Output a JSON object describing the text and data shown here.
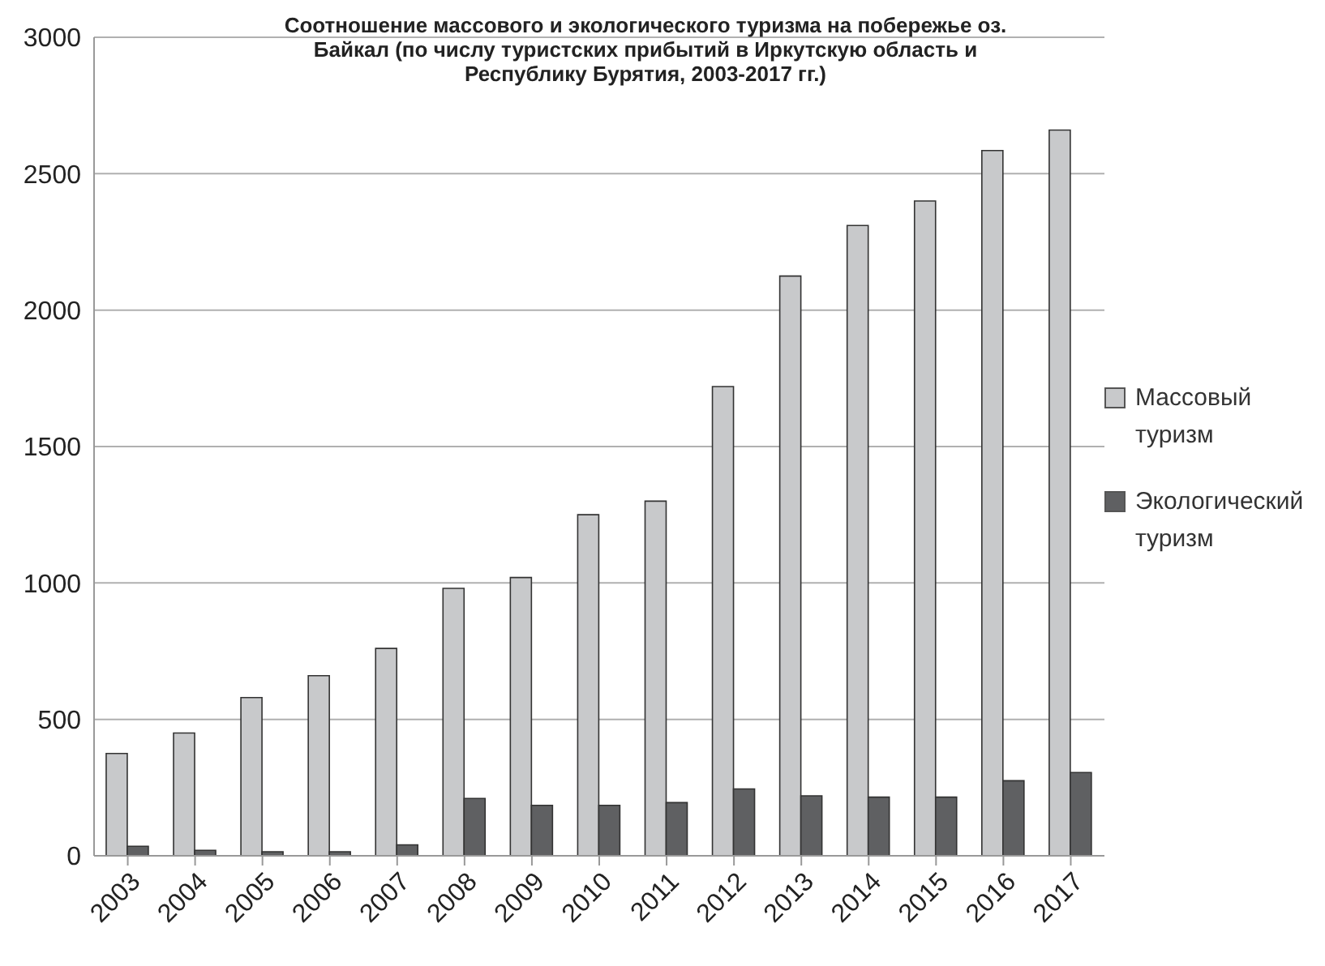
{
  "chart_data": {
    "type": "bar",
    "title": "Соотношение массового и экологического туризма на побережье оз. Байкал (по числу туристских прибытий в Иркутскую область и Республику Бурятия, 2003-2017 гг.)",
    "categories": [
      "2003",
      "2004",
      "2005",
      "2006",
      "2007",
      "2008",
      "2009",
      "2010",
      "2011",
      "2012",
      "2013",
      "2014",
      "2015",
      "2016",
      "2017"
    ],
    "series": [
      {
        "name": "Массовый туризм",
        "color": "#c8c9cb",
        "values": [
          375,
          450,
          580,
          660,
          760,
          980,
          1020,
          1250,
          1300,
          1720,
          2125,
          2310,
          2400,
          2585,
          2660
        ]
      },
      {
        "name": "Экологический туризм",
        "color": "#5f6062",
        "values": [
          35,
          20,
          15,
          15,
          40,
          210,
          185,
          185,
          195,
          245,
          220,
          215,
          215,
          275,
          305
        ]
      }
    ],
    "ylim": [
      0,
      3000
    ],
    "yticks": [
      0,
      500,
      1000,
      1500,
      2000,
      2500,
      3000
    ],
    "grid": "y",
    "legend": "right"
  }
}
